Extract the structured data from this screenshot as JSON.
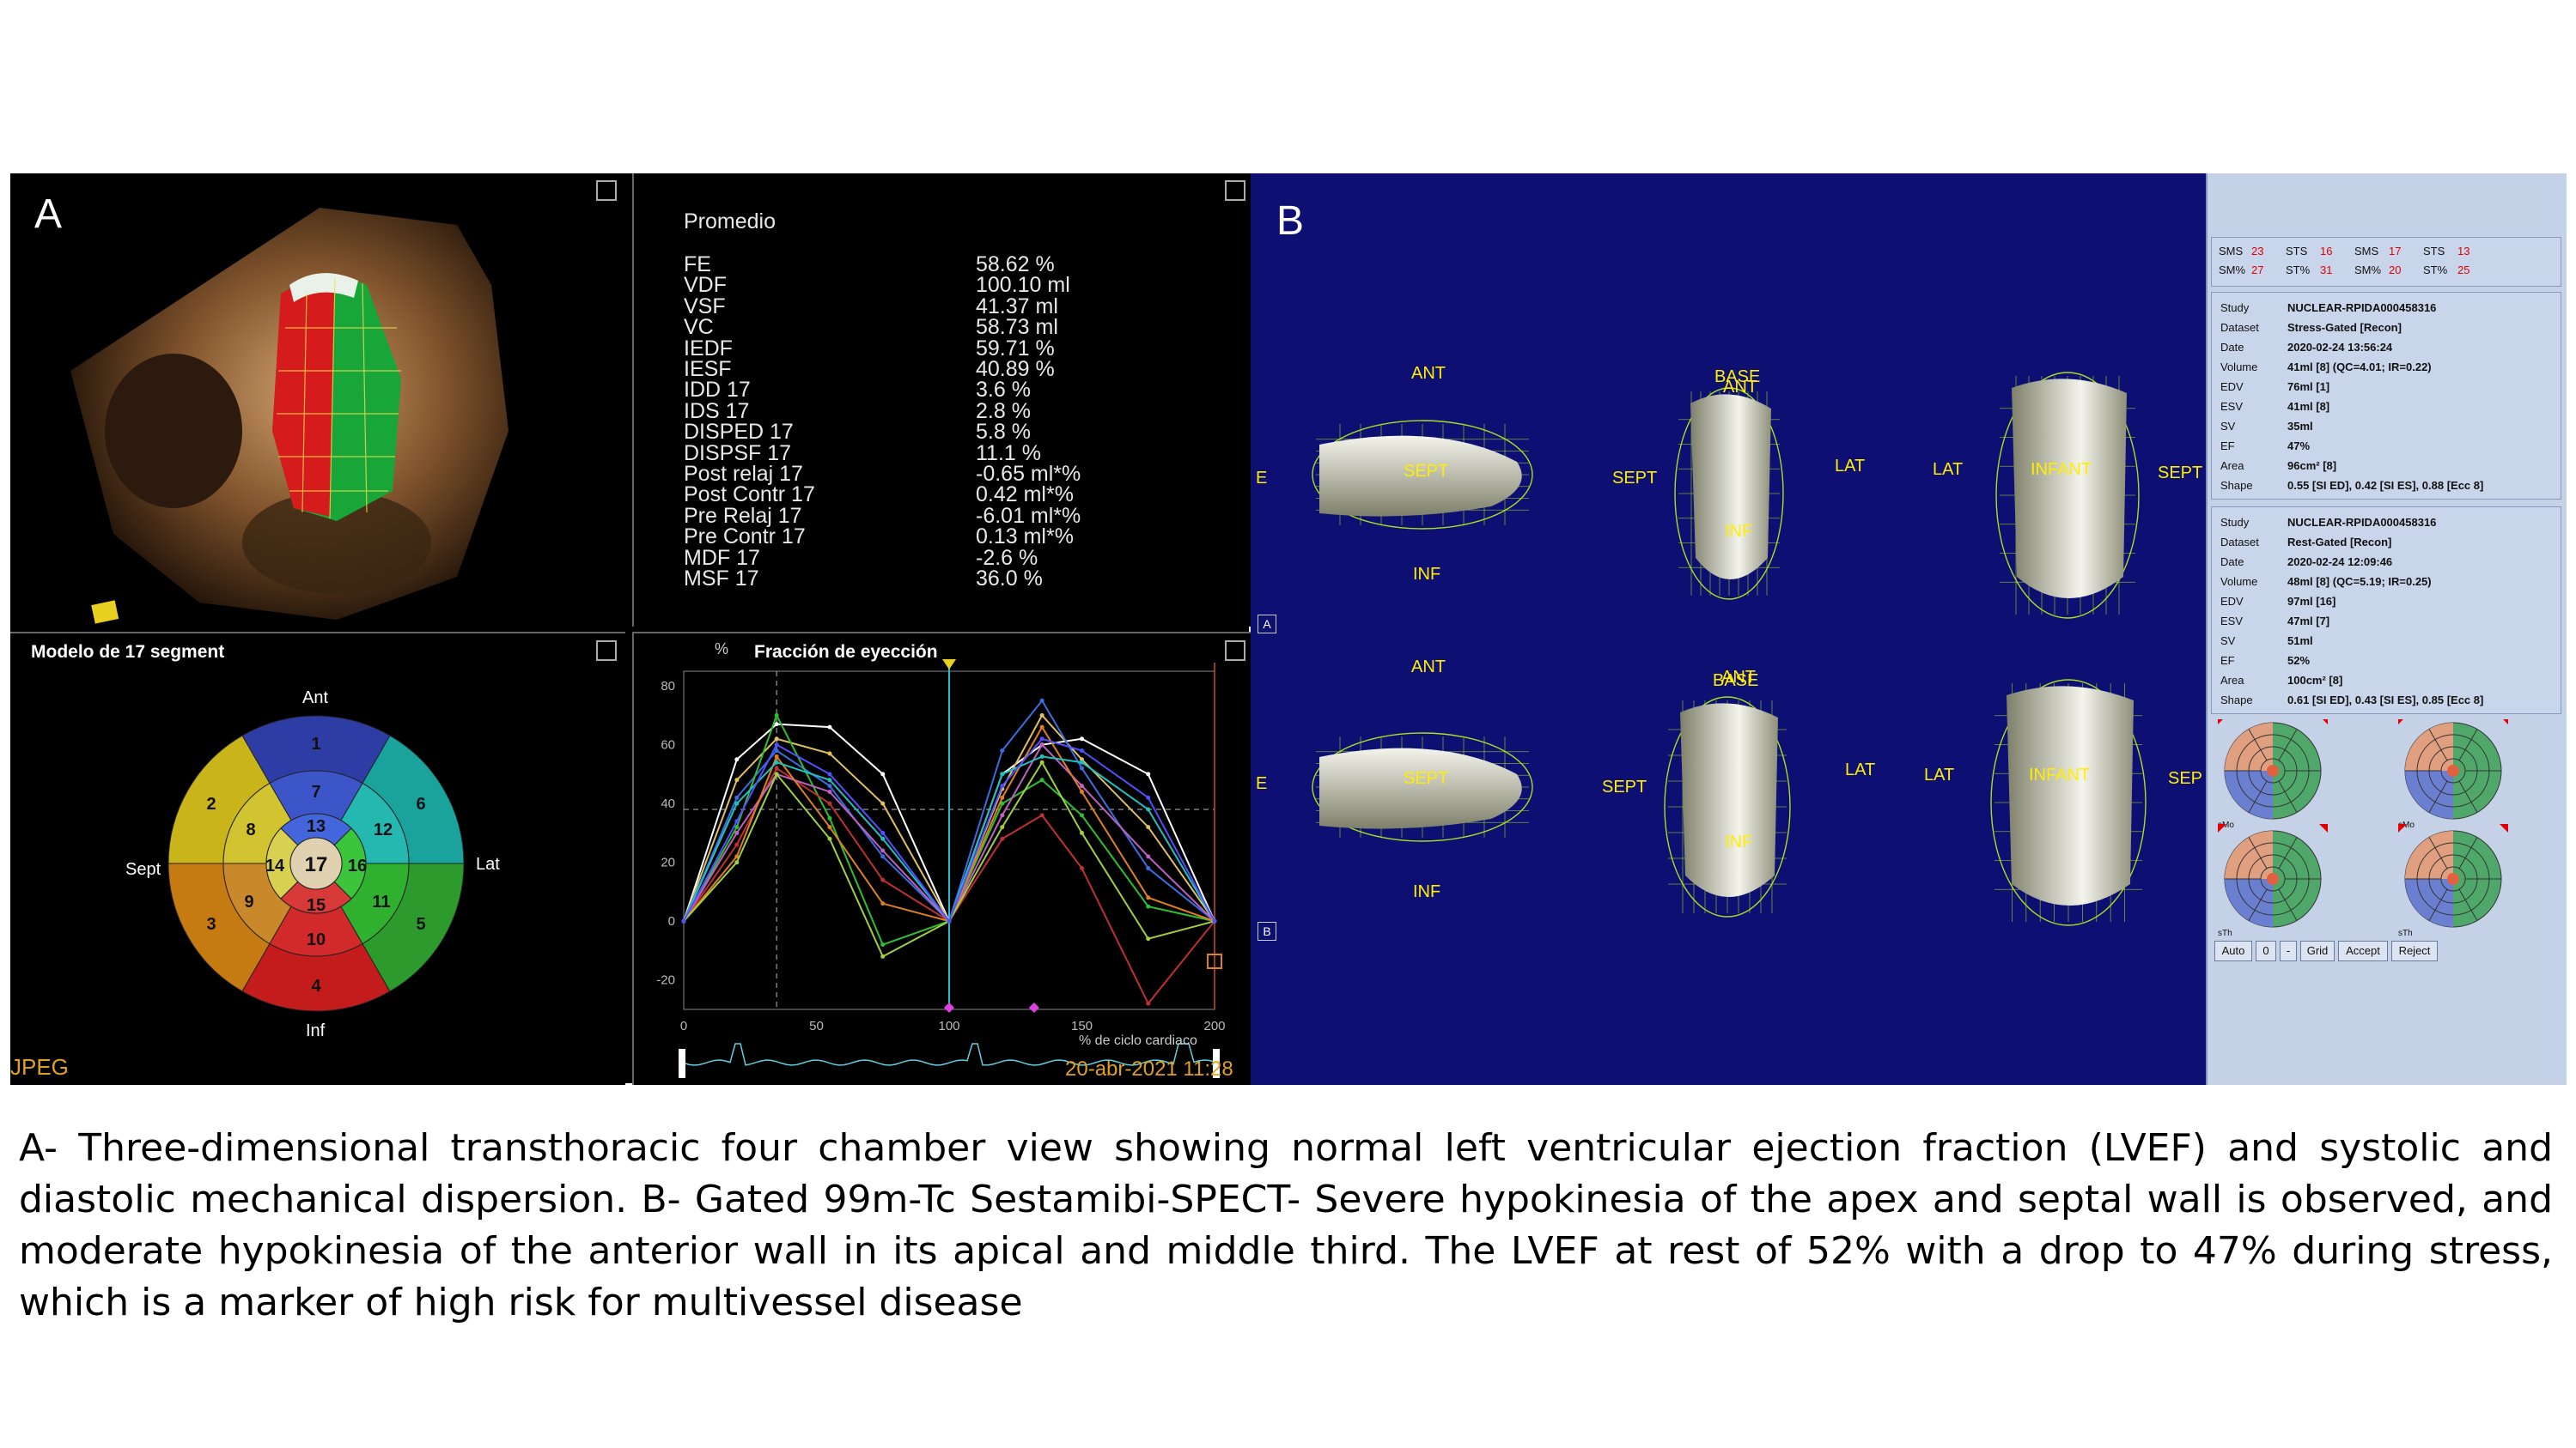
{
  "panelA": {
    "letter": "A",
    "echo_label": "JPEG",
    "metrics_title": "Promedio",
    "metrics": [
      {
        "name": "FE",
        "value": "58.62 %"
      },
      {
        "name": "VDF",
        "value": "100.10 ml"
      },
      {
        "name": "VSF",
        "value": "41.37 ml"
      },
      {
        "name": "VC",
        "value": "58.73 ml"
      },
      {
        "name": "IEDF",
        "value": "59.71 %"
      },
      {
        "name": "IESF",
        "value": "40.89 %"
      },
      {
        "name": "IDD 17",
        "value": "3.6 %"
      },
      {
        "name": "IDS 17",
        "value": "2.8 %"
      },
      {
        "name": "DISPED 17",
        "value": "5.8 %"
      },
      {
        "name": "DISPSF 17",
        "value": "11.1 %"
      },
      {
        "name": "Post relaj 17",
        "value": "-0.65 ml*%"
      },
      {
        "name": "Post Contr 17",
        "value": "0.42 ml*%"
      },
      {
        "name": "Pre Relaj 17",
        "value": "-6.01 ml*%"
      },
      {
        "name": "Pre Contr 17",
        "value": "0.13 ml*%"
      },
      {
        "name": "MDF 17",
        "value": "-2.6 %"
      },
      {
        "name": "MSF 17",
        "value": "36.0 %"
      }
    ],
    "bullseye": {
      "title": "Modelo de 17 segment",
      "labels": {
        "ant": "Ant",
        "inf": "Inf",
        "sept": "Sept",
        "lat": "Lat"
      },
      "segments": [
        "1",
        "2",
        "3",
        "4",
        "5",
        "6",
        "7",
        "8",
        "9",
        "10",
        "11",
        "12",
        "13",
        "14",
        "15",
        "16",
        "17"
      ],
      "colors": {
        "1": "#2e3da6",
        "2": "#c9b51a",
        "3": "#c67a12",
        "4": "#c41c1c",
        "5": "#2c9a2c",
        "6": "#1aa39c",
        "7": "#3c56c9",
        "8": "#d1c430",
        "9": "#c9882a",
        "10": "#d22a2a",
        "11": "#2fb02f",
        "12": "#24b8b0",
        "13": "#4466dd",
        "14": "#d8d050",
        "15": "#d83a3a",
        "16": "#3cc43c",
        "17": "#e0d2b0"
      }
    },
    "ef_chart": {
      "title": "Fracción de eyección",
      "y_unit": "%",
      "x_label": "% de ciclo cardiaco",
      "timestamp": "20-abr-2021 11:28"
    }
  },
  "chart_data": {
    "type": "line",
    "title": "Fracción de eyección",
    "xlabel": "% de ciclo cardiaco",
    "ylabel": "%",
    "xlim": [
      0,
      200
    ],
    "ylim": [
      -30,
      85
    ],
    "x_ticks": [
      0,
      50,
      100,
      150,
      200
    ],
    "y_ticks": [
      80,
      60,
      40,
      20,
      0,
      -20
    ],
    "x": [
      0,
      20,
      35,
      55,
      75,
      100,
      120,
      135,
      150,
      175,
      200
    ],
    "series": [
      {
        "color": "#ffffff",
        "values": [
          0,
          55,
          67,
          66,
          50,
          0,
          50,
          60,
          62,
          50,
          0
        ]
      },
      {
        "color": "#e0c060",
        "values": [
          0,
          48,
          62,
          57,
          40,
          0,
          45,
          70,
          55,
          32,
          0
        ]
      },
      {
        "color": "#3a6ee0",
        "values": [
          0,
          42,
          58,
          46,
          22,
          0,
          58,
          75,
          52,
          18,
          0
        ]
      },
      {
        "color": "#2cc030",
        "values": [
          0,
          32,
          70,
          35,
          -8,
          0,
          40,
          48,
          36,
          5,
          0
        ]
      },
      {
        "color": "#c03030",
        "values": [
          0,
          26,
          52,
          40,
          14,
          0,
          28,
          36,
          18,
          -28,
          0
        ]
      },
      {
        "color": "#c060c0",
        "values": [
          0,
          30,
          50,
          44,
          24,
          0,
          36,
          60,
          46,
          22,
          0
        ]
      },
      {
        "color": "#e08020",
        "values": [
          0,
          22,
          56,
          32,
          6,
          0,
          42,
          66,
          44,
          8,
          0
        ]
      },
      {
        "color": "#20c0c0",
        "values": [
          0,
          40,
          54,
          48,
          28,
          0,
          50,
          56,
          54,
          38,
          0
        ]
      },
      {
        "color": "#a0d040",
        "values": [
          0,
          20,
          50,
          28,
          -12,
          0,
          32,
          54,
          30,
          -6,
          0
        ]
      },
      {
        "color": "#5050ff",
        "values": [
          0,
          34,
          60,
          50,
          30,
          0,
          46,
          62,
          58,
          42,
          0
        ]
      }
    ],
    "reference_lines": {
      "dashed_x": 35,
      "dashed_y": 38,
      "marker_x": 100
    }
  },
  "panelB": {
    "letter": "B",
    "row_labels": [
      "A",
      "B"
    ],
    "views": {
      "ant": "ANT",
      "inf": "INF",
      "sept": "SEPT",
      "lat": "LAT",
      "base": "BASE",
      "infant": "INFANT",
      "e": "E",
      "sep": "SEP"
    },
    "scores": {
      "sms1_label": "SMS",
      "sms1": "23",
      "sts1_label": "STS",
      "sts1": "16",
      "sms2_label": "SMS",
      "sms2": "17",
      "sts2_label": "STS",
      "sts2": "13",
      "smp1_label": "SM%",
      "smp1": "27",
      "stp1_label": "ST%",
      "stp1": "31",
      "smp2_label": "SM%",
      "smp2": "20",
      "stp2_label": "ST%",
      "stp2": "25"
    },
    "stress": [
      {
        "k": "Study",
        "v": "NUCLEAR-RPIDA000458316"
      },
      {
        "k": "Dataset",
        "v": "Stress-Gated [Recon]"
      },
      {
        "k": "Date",
        "v": "2020-02-24 13:56:24"
      },
      {
        "k": "Volume",
        "v": "41ml [8] (QC=4.01; IR=0.22)"
      },
      {
        "k": "EDV",
        "v": "76ml [1]"
      },
      {
        "k": "ESV",
        "v": "41ml [8]"
      },
      {
        "k": "SV",
        "v": "35ml"
      },
      {
        "k": "EF",
        "v": "47%"
      },
      {
        "k": "Area",
        "v": "96cm² [8]"
      },
      {
        "k": "Shape",
        "v": "0.55 [SI ED], 0.42 [SI ES], 0.88 [Ecc 8]"
      }
    ],
    "rest": [
      {
        "k": "Study",
        "v": "NUCLEAR-RPIDA000458316"
      },
      {
        "k": "Dataset",
        "v": "Rest-Gated [Recon]"
      },
      {
        "k": "Date",
        "v": "2020-02-24 12:09:46"
      },
      {
        "k": "Volume",
        "v": "48ml [8] (QC=5.19; IR=0.25)"
      },
      {
        "k": "EDV",
        "v": "97ml [16]"
      },
      {
        "k": "ESV",
        "v": "47ml [7]"
      },
      {
        "k": "SV",
        "v": "51ml"
      },
      {
        "k": "EF",
        "v": "52%"
      },
      {
        "k": "Area",
        "v": "100cm² [8]"
      },
      {
        "k": "Shape",
        "v": "0.61 [SI ED], 0.43 [SI ES], 0.85 [Ecc 8]"
      }
    ],
    "buttons": {
      "auto": "Auto",
      "zero": "0",
      "minus": "-",
      "grid": "Grid",
      "accept": "Accept",
      "reject": "Reject"
    },
    "bullseye_small_labels": [
      "sMo",
      "sMo",
      "sTh",
      "sTh"
    ]
  },
  "caption": "A- Three-dimensional transthoracic four chamber view showing normal left ventricular ejection fraction (LVEF) and systolic and  diastolic mechanical dispersion. B- Gated 99m-Tc Sestamibi-SPECT- Severe hypokinesia of the apex and septal wall is observed, and moderate hypokinesia of the anterior wall in its apical and middle third. The LVEF at rest of 52% with a drop to 47% during stress, which is a marker of high risk for multivessel disease"
}
